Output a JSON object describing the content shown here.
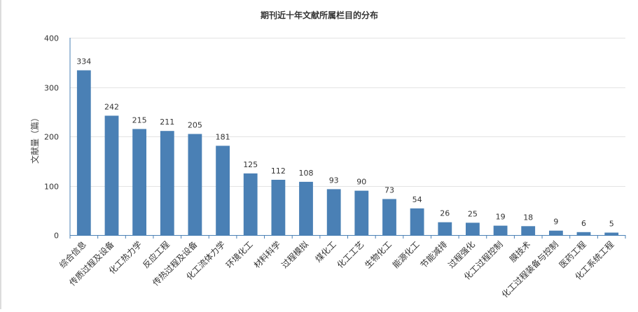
{
  "chart_data": {
    "type": "bar",
    "title": "期刊近十年文献所属栏目的分布",
    "ylabel": "文献量（篇）",
    "xlabel": "",
    "ylim": [
      0,
      400
    ],
    "yticks": [
      0,
      100,
      200,
      300,
      400
    ],
    "grid": true,
    "bar_color": "#4a80b5",
    "categories": [
      "综合信息",
      "传质过程及设备",
      "化工热力学",
      "反应工程",
      "传热过程及设备",
      "化工流体力学",
      "环境化工",
      "材料科学",
      "过程模拟",
      "煤化工",
      "化工工艺",
      "生物化工",
      "能源化工",
      "节能减排",
      "过程强化",
      "化工过程控制",
      "膜技术",
      "化工过程装备与控制",
      "医药工程",
      "化工系统工程"
    ],
    "values": [
      334,
      242,
      215,
      211,
      205,
      181,
      125,
      112,
      108,
      93,
      90,
      73,
      54,
      26,
      25,
      19,
      18,
      9,
      6,
      5
    ]
  }
}
